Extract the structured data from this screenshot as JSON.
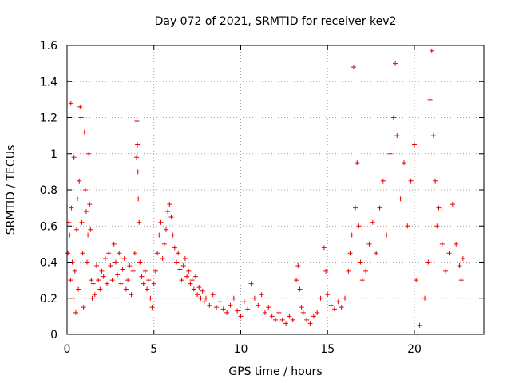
{
  "chart_data": {
    "type": "scatter",
    "title": "Day 072 of 2021, SRMTID for receiver kev2",
    "xlabel": "GPS time / hours",
    "ylabel": "SRMTID / TECUs",
    "xlim": [
      0,
      24
    ],
    "ylim": [
      0,
      1.6
    ],
    "xticks": [
      0,
      5,
      10,
      15,
      20
    ],
    "yticks": [
      0,
      0.2,
      0.4,
      0.6,
      0.8,
      1,
      1.2,
      1.4,
      1.6
    ],
    "xtick_labels": [
      "0",
      "5",
      "10",
      "15",
      "20"
    ],
    "ytick_labels": [
      "0",
      "0.2",
      "0.4",
      "0.6",
      "0.8",
      "1",
      "1.2",
      "1.4",
      "1.6"
    ],
    "grid": true,
    "marker": "+",
    "series": [
      {
        "name": "SRMTID",
        "color": "#ee0000",
        "points": [
          [
            0.05,
            0.45
          ],
          [
            0.1,
            0.62
          ],
          [
            0.15,
            0.55
          ],
          [
            0.2,
            0.3
          ],
          [
            0.22,
            1.28
          ],
          [
            0.25,
            0.7
          ],
          [
            0.3,
            0.4
          ],
          [
            0.35,
            0.2
          ],
          [
            0.4,
            0.98
          ],
          [
            0.45,
            0.35
          ],
          [
            0.5,
            0.12
          ],
          [
            0.55,
            0.58
          ],
          [
            0.6,
            0.75
          ],
          [
            0.65,
            0.25
          ],
          [
            0.7,
            0.85
          ],
          [
            0.75,
            1.26
          ],
          [
            0.8,
            1.2
          ],
          [
            0.85,
            0.62
          ],
          [
            0.9,
            0.45
          ],
          [
            0.95,
            0.15
          ],
          [
            1.0,
            1.12
          ],
          [
            1.05,
            0.8
          ],
          [
            1.1,
            0.68
          ],
          [
            1.15,
            0.4
          ],
          [
            1.2,
            0.55
          ],
          [
            1.25,
            1.0
          ],
          [
            1.3,
            0.72
          ],
          [
            1.35,
            0.58
          ],
          [
            1.4,
            0.3
          ],
          [
            1.45,
            0.2
          ],
          [
            1.5,
            0.28
          ],
          [
            1.6,
            0.22
          ],
          [
            1.7,
            0.38
          ],
          [
            1.8,
            0.3
          ],
          [
            1.9,
            0.25
          ],
          [
            2.0,
            0.35
          ],
          [
            2.1,
            0.32
          ],
          [
            2.2,
            0.42
          ],
          [
            2.3,
            0.28
          ],
          [
            2.4,
            0.45
          ],
          [
            2.5,
            0.38
          ],
          [
            2.6,
            0.3
          ],
          [
            2.7,
            0.5
          ],
          [
            2.8,
            0.4
          ],
          [
            2.9,
            0.33
          ],
          [
            3.0,
            0.45
          ],
          [
            3.1,
            0.28
          ],
          [
            3.2,
            0.36
          ],
          [
            3.3,
            0.42
          ],
          [
            3.4,
            0.25
          ],
          [
            3.5,
            0.3
          ],
          [
            3.6,
            0.38
          ],
          [
            3.7,
            0.22
          ],
          [
            3.8,
            0.35
          ],
          [
            3.9,
            0.45
          ],
          [
            4.0,
            0.98
          ],
          [
            4.02,
            1.18
          ],
          [
            4.05,
            1.05
          ],
          [
            4.08,
            0.9
          ],
          [
            4.1,
            0.75
          ],
          [
            4.15,
            0.62
          ],
          [
            4.2,
            0.4
          ],
          [
            4.3,
            0.32
          ],
          [
            4.4,
            0.28
          ],
          [
            4.5,
            0.35
          ],
          [
            4.6,
            0.25
          ],
          [
            4.7,
            0.3
          ],
          [
            4.8,
            0.2
          ],
          [
            4.9,
            0.15
          ],
          [
            5.0,
            0.28
          ],
          [
            5.1,
            0.35
          ],
          [
            5.2,
            0.45
          ],
          [
            5.3,
            0.55
          ],
          [
            5.4,
            0.62
          ],
          [
            5.5,
            0.42
          ],
          [
            5.6,
            0.5
          ],
          [
            5.7,
            0.58
          ],
          [
            5.8,
            0.68
          ],
          [
            5.9,
            0.72
          ],
          [
            6.0,
            0.65
          ],
          [
            6.1,
            0.55
          ],
          [
            6.2,
            0.48
          ],
          [
            6.3,
            0.4
          ],
          [
            6.4,
            0.45
          ],
          [
            6.5,
            0.36
          ],
          [
            6.6,
            0.3
          ],
          [
            6.7,
            0.38
          ],
          [
            6.8,
            0.42
          ],
          [
            6.9,
            0.32
          ],
          [
            7.0,
            0.35
          ],
          [
            7.1,
            0.28
          ],
          [
            7.2,
            0.3
          ],
          [
            7.3,
            0.25
          ],
          [
            7.4,
            0.32
          ],
          [
            7.5,
            0.22
          ],
          [
            7.6,
            0.26
          ],
          [
            7.7,
            0.2
          ],
          [
            7.8,
            0.24
          ],
          [
            7.9,
            0.18
          ],
          [
            8.0,
            0.2
          ],
          [
            8.2,
            0.16
          ],
          [
            8.4,
            0.22
          ],
          [
            8.6,
            0.15
          ],
          [
            8.8,
            0.18
          ],
          [
            9.0,
            0.14
          ],
          [
            9.2,
            0.12
          ],
          [
            9.4,
            0.16
          ],
          [
            9.6,
            0.2
          ],
          [
            9.8,
            0.13
          ],
          [
            10.0,
            0.1
          ],
          [
            10.2,
            0.18
          ],
          [
            10.4,
            0.14
          ],
          [
            10.6,
            0.28
          ],
          [
            10.8,
            0.2
          ],
          [
            11.0,
            0.16
          ],
          [
            11.2,
            0.22
          ],
          [
            11.4,
            0.12
          ],
          [
            11.6,
            0.15
          ],
          [
            11.8,
            0.1
          ],
          [
            12.0,
            0.08
          ],
          [
            12.2,
            0.12
          ],
          [
            12.4,
            0.08
          ],
          [
            12.6,
            0.06
          ],
          [
            12.8,
            0.1
          ],
          [
            13.0,
            0.08
          ],
          [
            13.2,
            0.3
          ],
          [
            13.3,
            0.38
          ],
          [
            13.4,
            0.25
          ],
          [
            13.5,
            0.15
          ],
          [
            13.6,
            0.12
          ],
          [
            13.8,
            0.08
          ],
          [
            14.0,
            0.06
          ],
          [
            14.2,
            0.1
          ],
          [
            14.4,
            0.12
          ],
          [
            14.6,
            0.2
          ],
          [
            14.8,
            0.48
          ],
          [
            14.9,
            0.35
          ],
          [
            15.0,
            0.22
          ],
          [
            15.2,
            0.16
          ],
          [
            15.4,
            0.14
          ],
          [
            15.6,
            0.18
          ],
          [
            15.8,
            0.15
          ],
          [
            16.0,
            0.2
          ],
          [
            16.2,
            0.35
          ],
          [
            16.3,
            0.45
          ],
          [
            16.4,
            0.55
          ],
          [
            16.5,
            1.48
          ],
          [
            16.6,
            0.7
          ],
          [
            16.7,
            0.95
          ],
          [
            16.8,
            0.6
          ],
          [
            16.9,
            0.4
          ],
          [
            17.0,
            0.3
          ],
          [
            17.2,
            0.35
          ],
          [
            17.4,
            0.5
          ],
          [
            17.6,
            0.62
          ],
          [
            17.8,
            0.45
          ],
          [
            18.0,
            0.7
          ],
          [
            18.2,
            0.85
          ],
          [
            18.4,
            0.55
          ],
          [
            18.6,
            1.0
          ],
          [
            18.8,
            1.2
          ],
          [
            18.9,
            1.5
          ],
          [
            19.0,
            1.1
          ],
          [
            19.2,
            0.75
          ],
          [
            19.4,
            0.95
          ],
          [
            19.6,
            0.6
          ],
          [
            19.8,
            0.85
          ],
          [
            20.0,
            1.05
          ],
          [
            20.1,
            0.3
          ],
          [
            20.2,
            0.0
          ],
          [
            20.3,
            0.05
          ],
          [
            20.6,
            0.2
          ],
          [
            20.8,
            0.4
          ],
          [
            20.9,
            1.3
          ],
          [
            21.0,
            1.57
          ],
          [
            21.1,
            1.1
          ],
          [
            21.2,
            0.85
          ],
          [
            21.3,
            0.6
          ],
          [
            21.4,
            0.7
          ],
          [
            21.6,
            0.5
          ],
          [
            21.8,
            0.35
          ],
          [
            22.0,
            0.45
          ],
          [
            22.2,
            0.72
          ],
          [
            22.4,
            0.5
          ],
          [
            22.6,
            0.38
          ],
          [
            22.7,
            0.3
          ],
          [
            22.8,
            0.42
          ]
        ]
      }
    ]
  }
}
